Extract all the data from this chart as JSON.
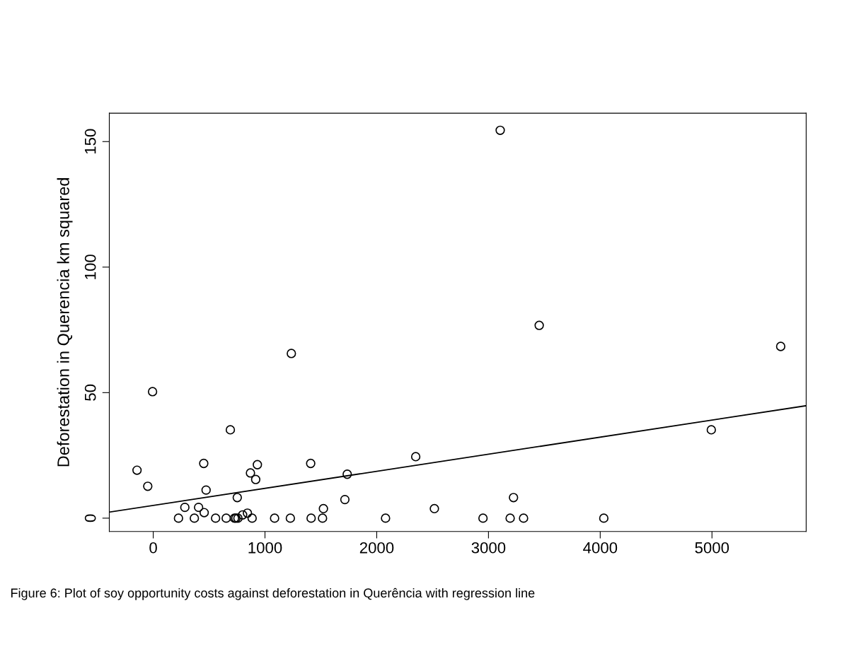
{
  "chart_data": {
    "type": "scatter",
    "ylabel": "Deforestation in Querencia km squared",
    "annotations": [
      "Figure 6: Plot of soy opportunity costs against deforestation in Querência with regression line"
    ],
    "series": [
      {
        "color": "#000000",
        "marker": "circle",
        "x": [
          -145,
          -49,
          -6,
          226,
          283,
          368,
          406,
          452,
          456,
          473,
          558,
          653,
          690,
          727,
          740,
          752,
          758,
          800,
          843,
          870,
          885,
          917,
          932,
          1086,
          1227,
          1236,
          1409,
          1413,
          1515,
          1523,
          1715,
          1736,
          2079,
          2349,
          2516,
          2951,
          3105,
          3194,
          3224,
          3314,
          3454,
          4032,
          4994,
          5615
        ],
        "values": [
          19.1,
          12.7,
          50.4,
          0,
          4.3,
          0,
          4.3,
          21.8,
          2.2,
          11.2,
          0,
          0,
          35.2,
          0,
          0,
          8.2,
          0,
          1.3,
          2,
          18,
          0,
          15.4,
          21.3,
          0,
          0,
          65.6,
          21.8,
          0,
          0,
          3.8,
          7.4,
          17.5,
          0,
          24.5,
          3.8,
          0,
          154.5,
          0,
          8.2,
          0,
          76.8,
          0,
          35.2,
          68.4
        ]
      },
      {
        "type": "line",
        "color": "#000000",
        "marker": "none",
        "x": [
          -393,
          5843
        ],
        "values": [
          2.4,
          44.8
        ]
      }
    ],
    "xlim": [
      -393,
      5843
    ],
    "ylim": [
      -5.3,
      161.3
    ],
    "xticks": [
      0,
      1000,
      2000,
      3000,
      4000,
      5000
    ],
    "yticks": [
      0,
      50,
      100,
      150
    ],
    "grid": false,
    "legend": false
  }
}
